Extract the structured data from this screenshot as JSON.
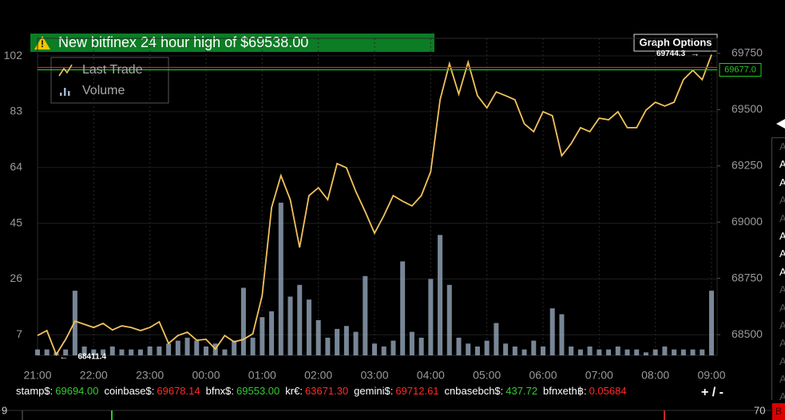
{
  "banner": "New bitfinex 24 hour high of $69538.00",
  "graph_options": "Graph Options",
  "chart_data": {
    "type": "line",
    "categories": [
      "21:00",
      null,
      null,
      null,
      null,
      null,
      "22:00",
      null,
      null,
      null,
      null,
      null,
      "23:00",
      null,
      null,
      null,
      null,
      null,
      "00:00",
      null,
      null,
      null,
      null,
      null,
      "01:00",
      null,
      null,
      null,
      null,
      null,
      "02:00",
      null,
      null,
      null,
      null,
      null,
      "03:00",
      null,
      null,
      null,
      null,
      null,
      "04:00",
      null,
      null,
      null,
      null,
      null,
      "05:00",
      null,
      null,
      null,
      null,
      null,
      "06:00",
      null,
      null,
      null,
      null,
      null,
      "07:00",
      null,
      null,
      null,
      null,
      null,
      "08:00",
      null,
      null,
      null,
      null,
      null,
      "09:00"
    ],
    "series": [
      {
        "name": "Last Trade",
        "type": "line",
        "axis": "y2",
        "color": "#f2c25c",
        "values": [
          68496,
          68518,
          68411.4,
          68479,
          68560,
          68546,
          68532,
          68550,
          68521,
          68539,
          68532,
          68518,
          68532,
          68557,
          68461,
          68496,
          68511,
          68475,
          68479,
          68436,
          68496,
          68468,
          68479,
          68504,
          68674,
          69065,
          69207,
          69100,
          68887,
          69118,
          69153,
          69100,
          69260,
          69242,
          69136,
          69047,
          68951,
          69029,
          69118,
          69093,
          69072,
          69118,
          69224,
          69544,
          69704,
          69569,
          69711,
          69562,
          69508,
          69579,
          69562,
          69544,
          69437,
          69402,
          69491,
          69473,
          69295,
          69349,
          69420,
          69402,
          69462,
          69455,
          69491,
          69420,
          69420,
          69498,
          69533,
          69516,
          69533,
          69633,
          69675,
          69633,
          69744.3
        ]
      },
      {
        "name": "Volume",
        "type": "bar",
        "axis": "y",
        "color": "#9fb3c8",
        "values": [
          2,
          2,
          1,
          2,
          22,
          3,
          2,
          2,
          3,
          2,
          2,
          2,
          3,
          3,
          4,
          5,
          6,
          5,
          3,
          4,
          2,
          5,
          23,
          6,
          13,
          15,
          52,
          20,
          24,
          19,
          12,
          6,
          9,
          10,
          8,
          27,
          4,
          3,
          5,
          32,
          8,
          6,
          26,
          41,
          24,
          6,
          4,
          3,
          5,
          11,
          4,
          3,
          2,
          5,
          3,
          16,
          14,
          3,
          2,
          3,
          2,
          2,
          3,
          2,
          2,
          1,
          2,
          3,
          2,
          2,
          2,
          2,
          22
        ]
      }
    ],
    "ylim": [
      0,
      108
    ],
    "yticks": [
      7,
      26,
      45,
      64,
      83,
      102
    ],
    "y2lim": [
      68408,
      69817
    ],
    "y2ticks": [
      68500,
      68750,
      69000,
      69250,
      69500,
      69750
    ],
    "grid": true,
    "last_price": {
      "value": 69677,
      "label": "69677.0"
    },
    "annotations": [
      "68411.4",
      "69744.3"
    ]
  },
  "tickers": [
    {
      "name": "stamp$:",
      "price": "69694.00",
      "color": "#33cc33"
    },
    {
      "name": "coinbase$:",
      "price": "69678.14",
      "color": "#ff2a2a"
    },
    {
      "name": "bfnx$:",
      "price": "69553.00",
      "color": "#33cc33"
    },
    {
      "name": "kr€:",
      "price": "63671.30",
      "color": "#ff2a2a"
    },
    {
      "name": "gemini$:",
      "price": "69712.61",
      "color": "#ff2a2a"
    },
    {
      "name": "cnbasebch$:",
      "price": "437.72",
      "color": "#33cc33"
    },
    {
      "name": "bfnxeth฿:",
      "price": "0.05684",
      "color": "#ff2a2a"
    }
  ],
  "zoom": "+ / -",
  "side_list": [
    {
      "text": "A",
      "bright": false
    },
    {
      "text": "A",
      "bright": true
    },
    {
      "text": "A",
      "bright": true
    },
    {
      "text": "A",
      "bright": false
    },
    {
      "text": "A",
      "bright": false
    },
    {
      "text": "A",
      "bright": true
    },
    {
      "text": "A",
      "bright": true
    },
    {
      "text": "A",
      "bright": true
    },
    {
      "text": "A",
      "bright": false
    },
    {
      "text": "A",
      "bright": false
    },
    {
      "text": "A",
      "bright": false
    },
    {
      "text": "A",
      "bright": false
    },
    {
      "text": "A",
      "bright": false
    },
    {
      "text": "A",
      "bright": false
    },
    {
      "text": "A",
      "bright": false
    }
  ],
  "footer_left": "9",
  "footer_right": "70",
  "footer_badge": "B"
}
